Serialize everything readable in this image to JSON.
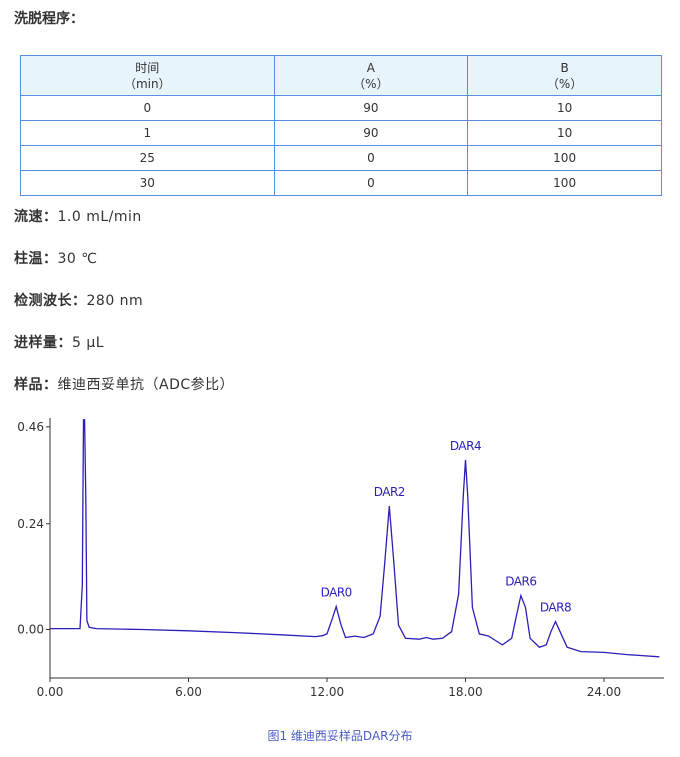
{
  "heading": "洗脱程序：",
  "table": {
    "headers": [
      [
        "时间",
        "（min）"
      ],
      [
        "A",
        "（%）"
      ],
      [
        "B",
        "（%）"
      ]
    ],
    "rows": [
      [
        "0",
        "90",
        "10"
      ],
      [
        "1",
        "90",
        "10"
      ],
      [
        "25",
        "0",
        "100"
      ],
      [
        "30",
        "0",
        "100"
      ]
    ]
  },
  "params": [
    {
      "label": "流速：",
      "value": "1.0 mL/min"
    },
    {
      "label": "柱温：",
      "value": "30 ℃"
    },
    {
      "label": "检测波长：",
      "value": "280 nm"
    },
    {
      "label": "进样量：",
      "value": "5 μL"
    },
    {
      "label": "样品：",
      "value": "维迪西妥单抗（ADC参比）"
    }
  ],
  "chart_data": {
    "type": "line",
    "x": [
      0,
      1.3,
      1.4,
      1.45,
      1.5,
      1.55,
      1.6,
      1.7,
      2.0,
      4,
      6,
      8,
      10,
      11.5,
      11.8,
      12.0,
      12.2,
      12.4,
      12.6,
      12.8,
      13.2,
      13.6,
      14.0,
      14.3,
      14.5,
      14.7,
      14.9,
      15.1,
      15.4,
      16.0,
      16.3,
      16.6,
      17.0,
      17.4,
      17.7,
      17.9,
      18.0,
      18.1,
      18.3,
      18.6,
      19.0,
      19.3,
      19.6,
      20.0,
      20.2,
      20.4,
      20.6,
      20.8,
      21.2,
      21.5,
      21.7,
      21.9,
      22.1,
      22.4,
      23.0,
      24.0,
      25.0,
      26.4
    ],
    "series": [
      {
        "color": "#2b1fb8",
        "values": [
          0.002,
          0.002,
          0.1,
          0.476,
          0.476,
          0.3,
          0.02,
          0.005,
          0.002,
          0.0,
          -0.003,
          -0.007,
          -0.012,
          -0.016,
          -0.014,
          -0.01,
          0.02,
          0.052,
          0.012,
          -0.018,
          -0.015,
          -0.018,
          -0.01,
          0.03,
          0.15,
          0.28,
          0.15,
          0.01,
          -0.02,
          -0.022,
          -0.018,
          -0.022,
          -0.02,
          -0.005,
          0.08,
          0.3,
          0.385,
          0.3,
          0.05,
          -0.01,
          -0.015,
          -0.025,
          -0.035,
          -0.02,
          0.03,
          0.077,
          0.05,
          -0.02,
          -0.04,
          -0.035,
          -0.005,
          0.018,
          -0.005,
          -0.04,
          -0.05,
          -0.052,
          -0.057,
          -0.062
        ]
      }
    ],
    "annotations": [
      {
        "text": "DAR0",
        "x": 12.4,
        "y": 0.052
      },
      {
        "text": "DAR2",
        "x": 14.7,
        "y": 0.28
      },
      {
        "text": "DAR4",
        "x": 18.0,
        "y": 0.385
      },
      {
        "text": "DAR6",
        "x": 20.4,
        "y": 0.077
      },
      {
        "text": "DAR8",
        "x": 21.9,
        "y": 0.018
      }
    ],
    "xlim": [
      0,
      26.6
    ],
    "ylim": [
      -0.11,
      0.48
    ],
    "xticks": [
      {
        "value": 0,
        "label": "0.00"
      },
      {
        "value": 6,
        "label": "6.00"
      },
      {
        "value": 12,
        "label": "12.00"
      },
      {
        "value": 18,
        "label": "18.00"
      },
      {
        "value": 24,
        "label": "24.00"
      }
    ],
    "yticks": [
      {
        "value": 0.46,
        "label": "0.46"
      },
      {
        "value": 0.24,
        "label": "0.24"
      },
      {
        "value": 0,
        "label": "0.00"
      }
    ],
    "caption": "图1 维迪西妥样品DAR分布"
  }
}
